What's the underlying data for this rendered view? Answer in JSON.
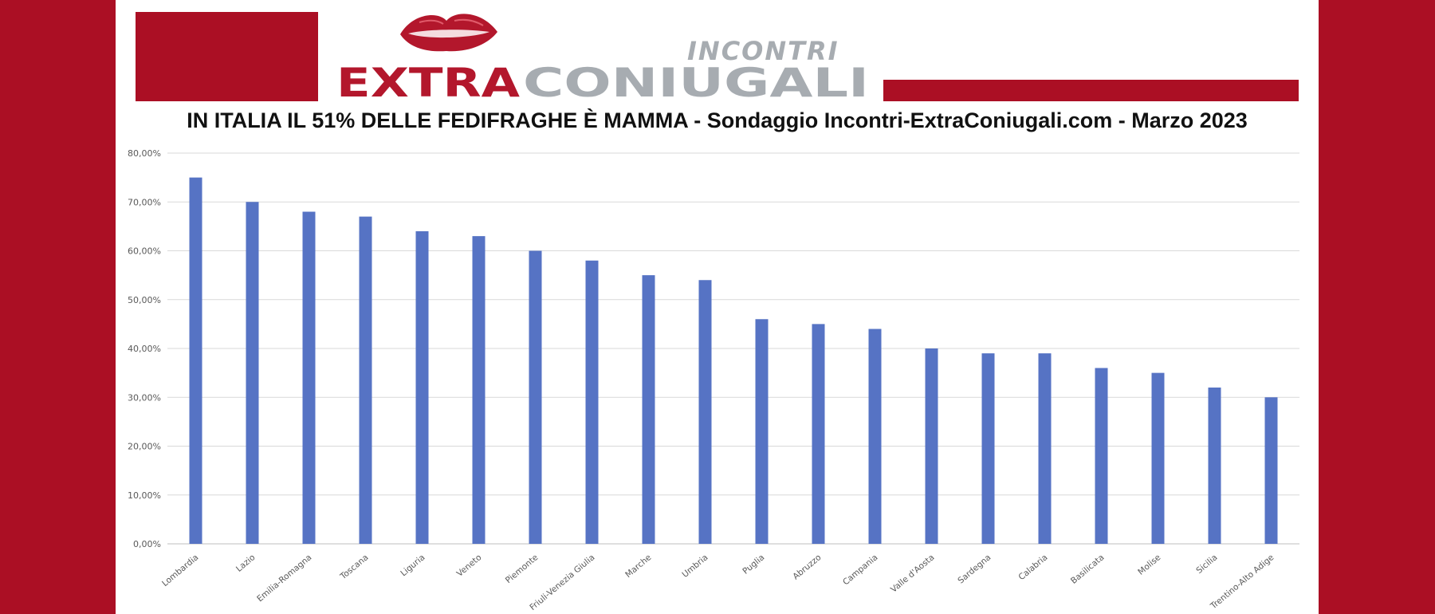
{
  "brand": {
    "top_word": "INCONTRI",
    "extra_word": "EXTRA",
    "coniugali_word": "CONIUGALI",
    "colors": {
      "red": "#ab0f24",
      "grey": "#a7acb1"
    }
  },
  "chart_data": {
    "type": "bar",
    "title": "IN ITALIA IL 51% DELLE FEDIFRAGHE È MAMMA - Sondaggio Incontri-ExtraConiugali.com - Marzo 2023",
    "xlabel": "",
    "ylabel": "",
    "ylim": [
      0,
      80
    ],
    "yticks": [
      "0,00%",
      "10,00%",
      "20,00%",
      "30,00%",
      "40,00%",
      "50,00%",
      "60,00%",
      "70,00%",
      "80,00%"
    ],
    "grid": true,
    "bar_color": "#5673c4",
    "categories": [
      "Lombardia",
      "Lazio",
      "Emilia-Romagna",
      "Toscana",
      "Liguria",
      "Veneto",
      "Piemonte",
      "Friuli-Venezia Giulia",
      "Marche",
      "Umbria",
      "Puglia",
      "Abruzzo",
      "Campania",
      "Valle d'Aosta",
      "Sardegna",
      "Calabria",
      "Basilicata",
      "Molise",
      "Sicilia",
      "Trentino-Alto Adige"
    ],
    "values": [
      75,
      70,
      68,
      67,
      64,
      63,
      60,
      58,
      55,
      54,
      46,
      45,
      44,
      40,
      39,
      39,
      36,
      35,
      32,
      30
    ]
  }
}
